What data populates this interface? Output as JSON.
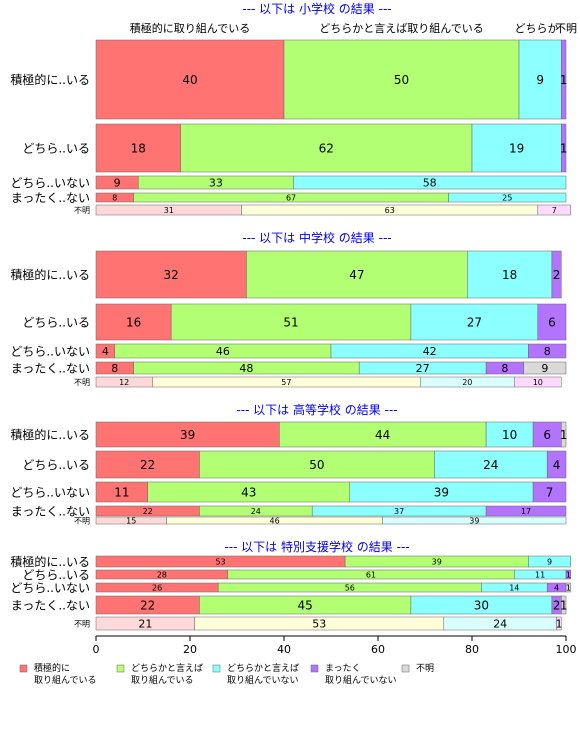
{
  "chart_data": {
    "type": "bar",
    "orientation": "horizontal",
    "stacked": "percent",
    "xlim": [
      0,
      100
    ],
    "xticks": [
      0,
      20,
      40,
      60,
      80,
      100
    ],
    "legend": {
      "placement": "bottom",
      "entries": [
        {
          "line1": "積極的に",
          "line2": "取り組んでいる",
          "color": "#ff7373"
        },
        {
          "line1": "どちらかと言えば",
          "line2": "取り組んでいる",
          "color": "#b3ff73"
        },
        {
          "line1": "どちらかと言えば",
          "line2": "取り組んでいない",
          "color": "#8cffff"
        },
        {
          "line1": "まったく",
          "line2": "取り組んでいない",
          "color": "#b273ff"
        },
        {
          "line1": "不明",
          "line2": "",
          "color": "#d9d9d9"
        }
      ]
    },
    "top_category_labels": [
      "積極的に取り組んでいる",
      "どちらかと言えば取り組んでいる",
      "どちらか",
      "不明"
    ],
    "panels": [
      {
        "title": "--- 以下は 小学校 の結果 ---",
        "rows": [
          {
            "label": "積極的に..いる",
            "values": [
              40,
              50,
              9,
              1,
              0
            ],
            "labels": [
              "40",
              "50",
              "9",
              "1",
              ""
            ]
          },
          {
            "label": "どちら..いる",
            "values": [
              18,
              62,
              19,
              1,
              0
            ],
            "labels": [
              "18",
              "62",
              "19",
              "1",
              ""
            ]
          },
          {
            "label": "どちら..いない",
            "values": [
              9,
              33,
              58,
              0,
              0
            ],
            "labels": [
              "9",
              "33",
              "58",
              "",
              ""
            ]
          },
          {
            "label": "まったく..ない",
            "values": [
              8,
              67,
              25,
              0,
              0
            ],
            "labels": [
              "8",
              "67",
              "25",
              "",
              ""
            ]
          },
          {
            "label": "不明",
            "values": [
              31,
              63,
              0,
              7,
              0
            ],
            "labels": [
              "31",
              "63",
              "",
              "7",
              ""
            ],
            "pale": true
          }
        ]
      },
      {
        "title": "--- 以下は 中学校 の結果 ---",
        "rows": [
          {
            "label": "積極的に..いる",
            "values": [
              32,
              47,
              18,
              2,
              0
            ],
            "labels": [
              "32",
              "47",
              "18",
              "2",
              ""
            ]
          },
          {
            "label": "どちら..いる",
            "values": [
              16,
              51,
              27,
              6,
              0
            ],
            "labels": [
              "16",
              "51",
              "27",
              "6",
              ""
            ]
          },
          {
            "label": "どちら..いない",
            "values": [
              4,
              46,
              42,
              8,
              0
            ],
            "labels": [
              "4",
              "46",
              "42",
              "8",
              ""
            ]
          },
          {
            "label": "まったく..ない",
            "values": [
              8,
              48,
              27,
              8,
              9
            ],
            "labels": [
              "8",
              "48",
              "27",
              "8",
              "9"
            ]
          },
          {
            "label": "不明",
            "values": [
              12,
              57,
              20,
              10,
              0
            ],
            "labels": [
              "12",
              "57",
              "20",
              "10",
              ""
            ],
            "pale": true
          }
        ]
      },
      {
        "title": "--- 以下は 高等学校 の結果 ---",
        "rows": [
          {
            "label": "積極的に..いる",
            "values": [
              39,
              44,
              10,
              6,
              1
            ],
            "labels": [
              "39",
              "44",
              "10",
              "6",
              "1"
            ]
          },
          {
            "label": "どちら..いる",
            "values": [
              22,
              50,
              24,
              4,
              0
            ],
            "labels": [
              "22",
              "50",
              "24",
              "4",
              ""
            ]
          },
          {
            "label": "どちら..いない",
            "values": [
              11,
              43,
              39,
              7,
              0
            ],
            "labels": [
              "11",
              "43",
              "39",
              "7",
              ""
            ]
          },
          {
            "label": "まったく..ない",
            "values": [
              22,
              24,
              37,
              17,
              0
            ],
            "labels": [
              "22",
              "24",
              "37",
              "17",
              ""
            ]
          },
          {
            "label": "不明",
            "values": [
              15,
              46,
              39,
              0,
              0
            ],
            "labels": [
              "15",
              "46",
              "39",
              "",
              ""
            ],
            "pale": true
          }
        ]
      },
      {
        "title": "--- 以下は 特別支援学校 の結果 ---",
        "rows": [
          {
            "label": "積極的に..いる",
            "values": [
              53,
              39,
              9,
              0,
              0
            ],
            "labels": [
              "53",
              "39",
              "9",
              "",
              ""
            ]
          },
          {
            "label": "どちら..いる",
            "values": [
              28,
              61,
              11,
              1,
              0
            ],
            "labels": [
              "28",
              "61",
              "11",
              "1",
              ""
            ]
          },
          {
            "label": "どちら..いない",
            "values": [
              26,
              56,
              14,
              4,
              1
            ],
            "labels": [
              "26",
              "56",
              "14",
              "4",
              "1"
            ]
          },
          {
            "label": "まったく..ない",
            "values": [
              22,
              45,
              30,
              2,
              1
            ],
            "labels": [
              "22",
              "45",
              "30",
              "2",
              "1"
            ]
          },
          {
            "label": "不明",
            "values": [
              21,
              53,
              24,
              1,
              0
            ],
            "labels": [
              "21",
              "53",
              "24",
              "1",
              ""
            ],
            "pale": true
          }
        ]
      }
    ]
  }
}
